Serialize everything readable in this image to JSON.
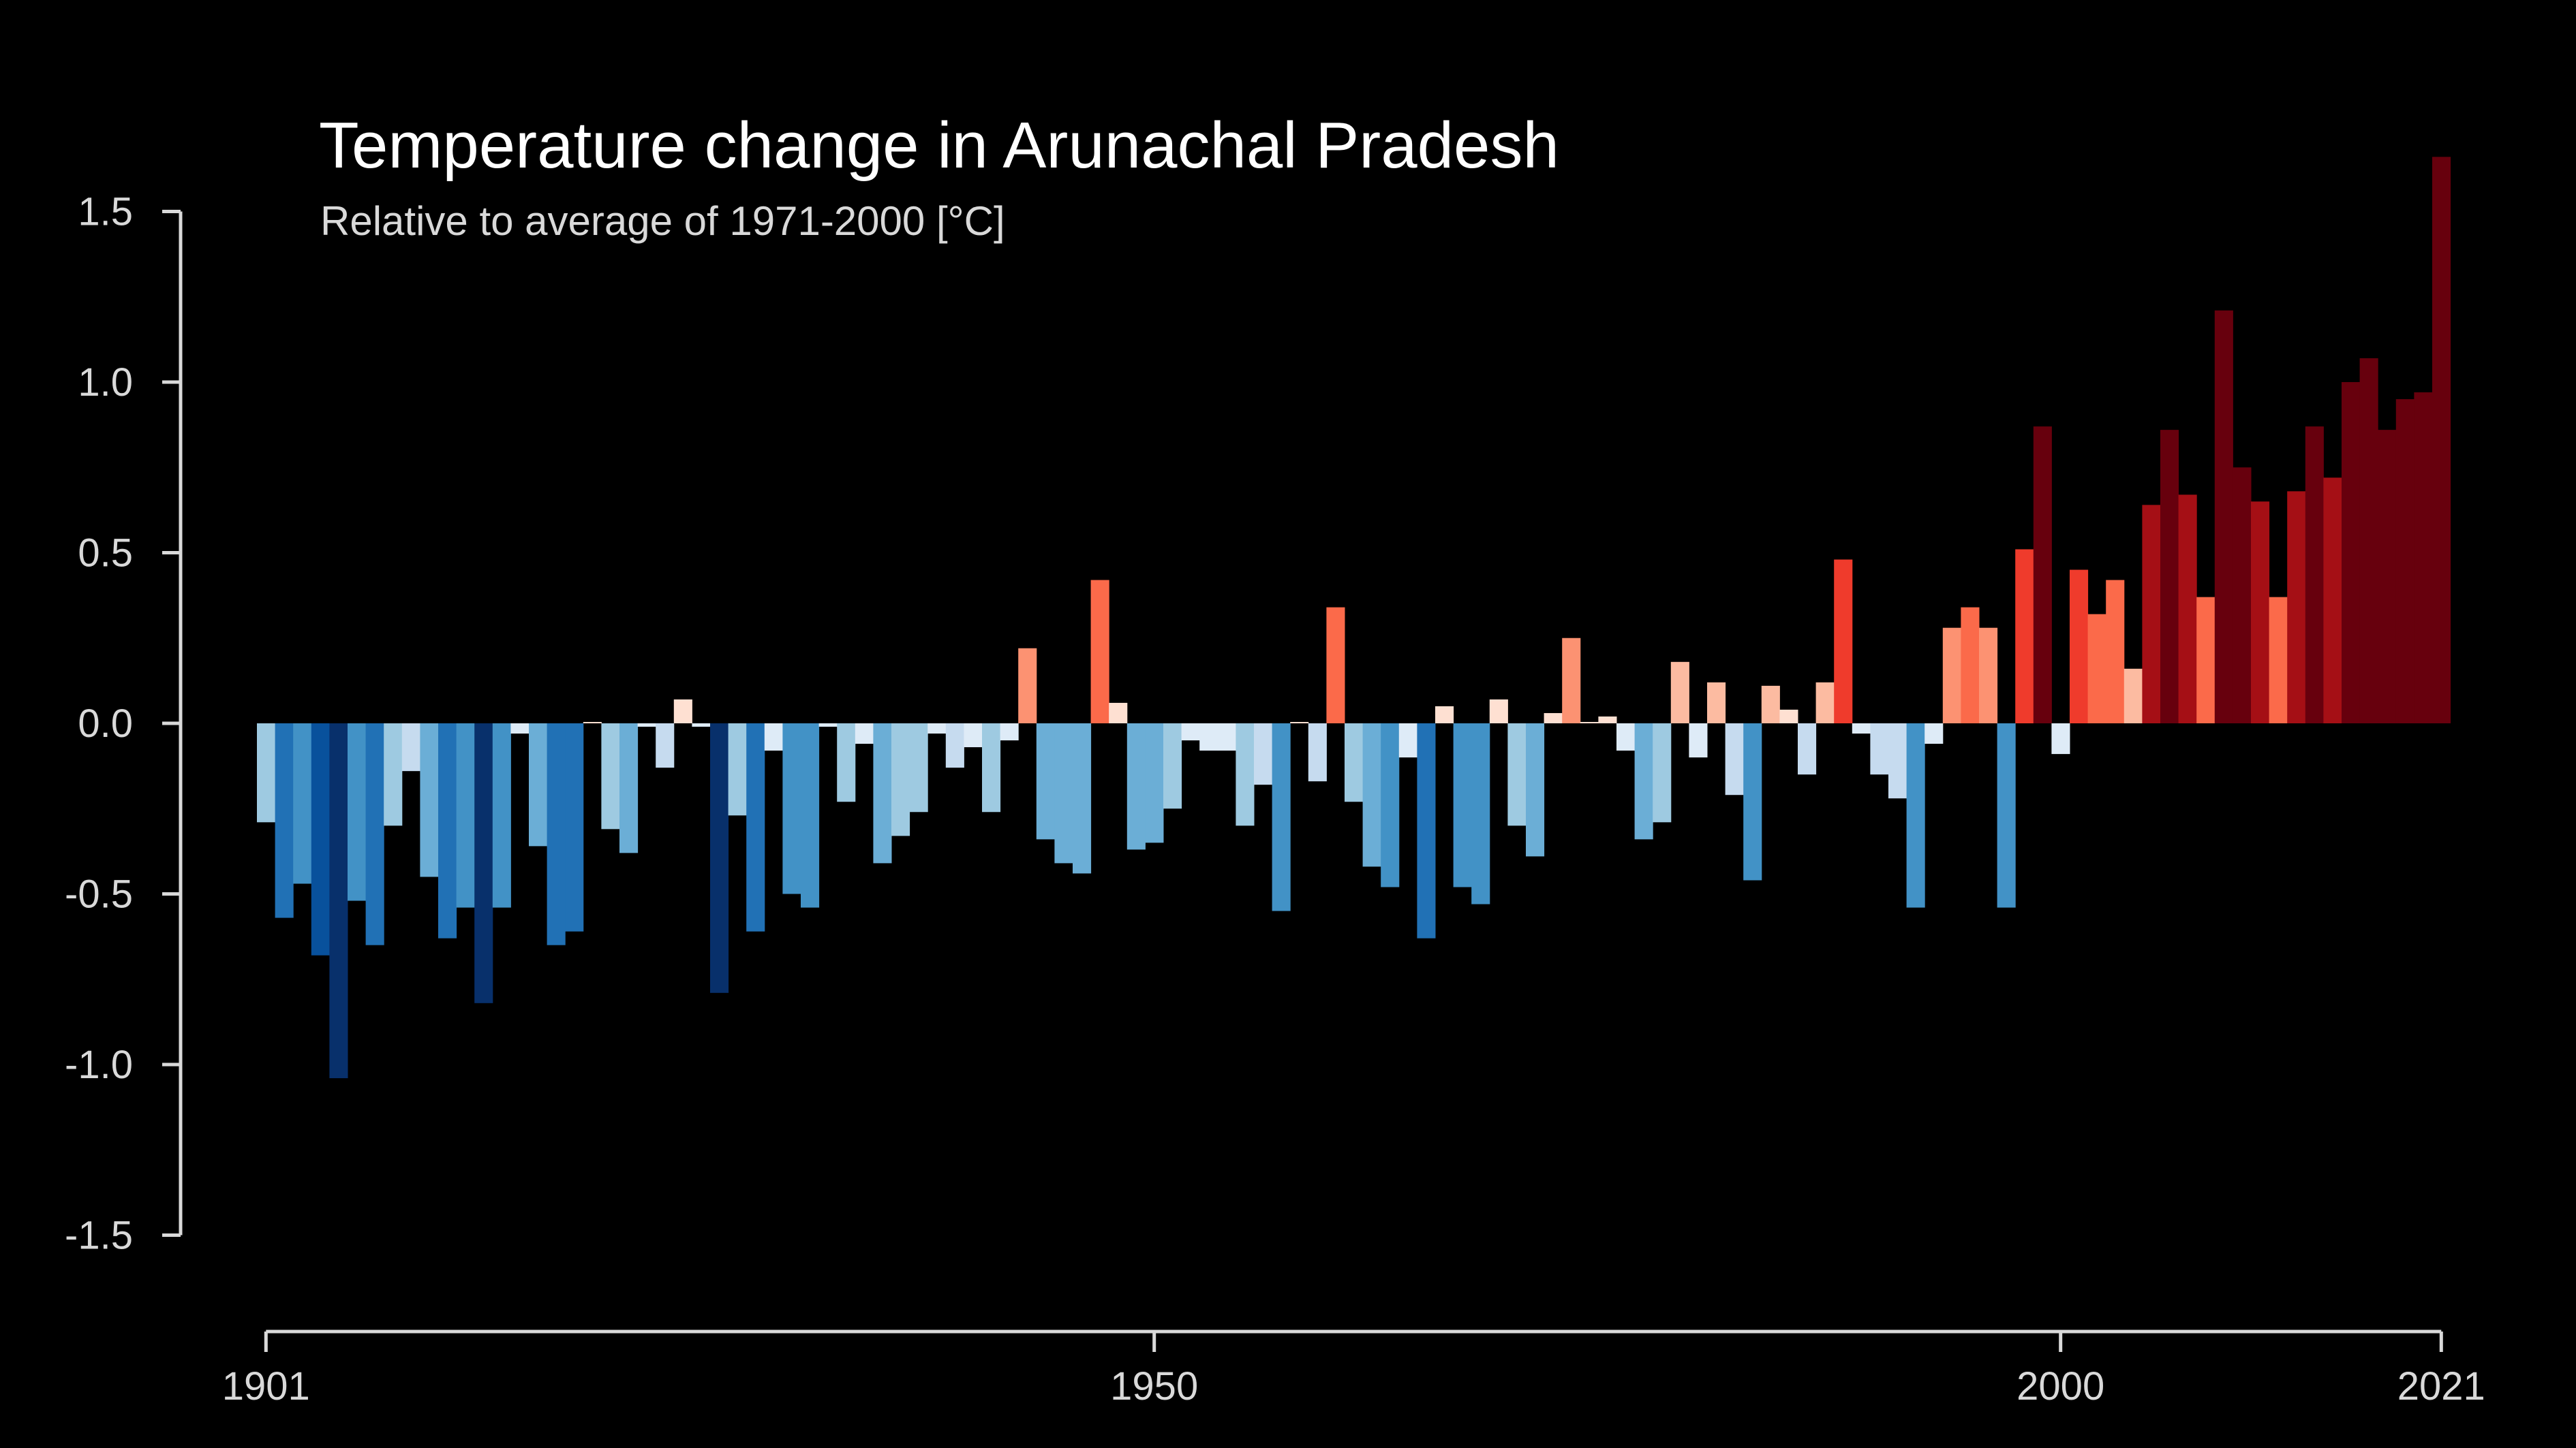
{
  "chart_data": {
    "type": "bar",
    "title": "Temperature change in Arunachal Pradesh",
    "subtitle": "Relative to average of 1971-2000  [°C]",
    "xlabel": "",
    "ylabel": "",
    "ylim": [
      -1.5,
      1.5
    ],
    "yticks": [
      "1.5",
      "1.0",
      "0.5",
      "0.0",
      "-0.5",
      "-1.0",
      "-1.5"
    ],
    "xticks": [
      "1901",
      "1950",
      "2000",
      "2021"
    ],
    "grid": false,
    "legend": "none",
    "x": [
      1901,
      1902,
      1903,
      1904,
      1905,
      1906,
      1907,
      1908,
      1909,
      1910,
      1911,
      1912,
      1913,
      1914,
      1915,
      1916,
      1917,
      1918,
      1919,
      1920,
      1921,
      1922,
      1923,
      1924,
      1925,
      1926,
      1927,
      1928,
      1929,
      1930,
      1931,
      1932,
      1933,
      1934,
      1935,
      1936,
      1937,
      1938,
      1939,
      1940,
      1941,
      1942,
      1943,
      1944,
      1945,
      1946,
      1947,
      1948,
      1949,
      1950,
      1951,
      1952,
      1953,
      1954,
      1955,
      1956,
      1957,
      1958,
      1959,
      1960,
      1961,
      1962,
      1963,
      1964,
      1965,
      1966,
      1967,
      1968,
      1969,
      1970,
      1971,
      1972,
      1973,
      1974,
      1975,
      1976,
      1977,
      1978,
      1979,
      1980,
      1981,
      1982,
      1983,
      1984,
      1985,
      1986,
      1987,
      1988,
      1989,
      1990,
      1991,
      1992,
      1993,
      1994,
      1995,
      1996,
      1997,
      1998,
      1999,
      2000,
      2001,
      2002,
      2003,
      2004,
      2005,
      2006,
      2007,
      2008,
      2009,
      2010,
      2011,
      2012,
      2013,
      2014,
      2015,
      2016,
      2017,
      2018,
      2019,
      2020,
      2021
    ],
    "values": [
      -0.29,
      -0.57,
      -0.47,
      -0.68,
      -1.04,
      -0.52,
      -0.65,
      -0.3,
      -0.14,
      -0.45,
      -0.63,
      -0.54,
      -0.82,
      -0.54,
      -0.03,
      -0.36,
      -0.65,
      -0.61,
      0.0,
      -0.31,
      -0.38,
      -0.01,
      -0.13,
      0.07,
      -0.01,
      -0.79,
      -0.27,
      -0.61,
      -0.08,
      -0.5,
      -0.54,
      -0.01,
      -0.23,
      -0.06,
      -0.41,
      -0.33,
      -0.26,
      -0.03,
      -0.13,
      -0.07,
      -0.26,
      -0.05,
      0.22,
      -0.34,
      -0.41,
      -0.44,
      0.42,
      0.06,
      -0.37,
      -0.35,
      -0.25,
      -0.05,
      -0.08,
      -0.08,
      -0.3,
      -0.18,
      -0.55,
      0.0,
      -0.17,
      0.34,
      -0.23,
      -0.42,
      -0.48,
      -0.1,
      -0.63,
      0.05,
      -0.48,
      -0.53,
      0.07,
      -0.3,
      -0.39,
      0.03,
      0.25,
      0.0,
      0.02,
      -0.08,
      -0.34,
      -0.29,
      0.18,
      -0.1,
      0.12,
      -0.21,
      -0.46,
      0.11,
      0.04,
      -0.15,
      0.12,
      0.48,
      -0.03,
      -0.15,
      -0.22,
      -0.54,
      -0.06,
      0.28,
      0.34,
      0.28,
      -0.54,
      0.51,
      0.87,
      -0.09,
      0.45,
      0.32,
      0.42,
      0.16,
      0.64,
      0.86,
      0.67,
      0.37,
      1.21,
      0.75,
      0.65,
      0.37,
      0.68,
      0.87,
      0.72,
      1.0,
      1.07,
      0.86,
      0.95,
      0.97,
      1.66
    ]
  }
}
